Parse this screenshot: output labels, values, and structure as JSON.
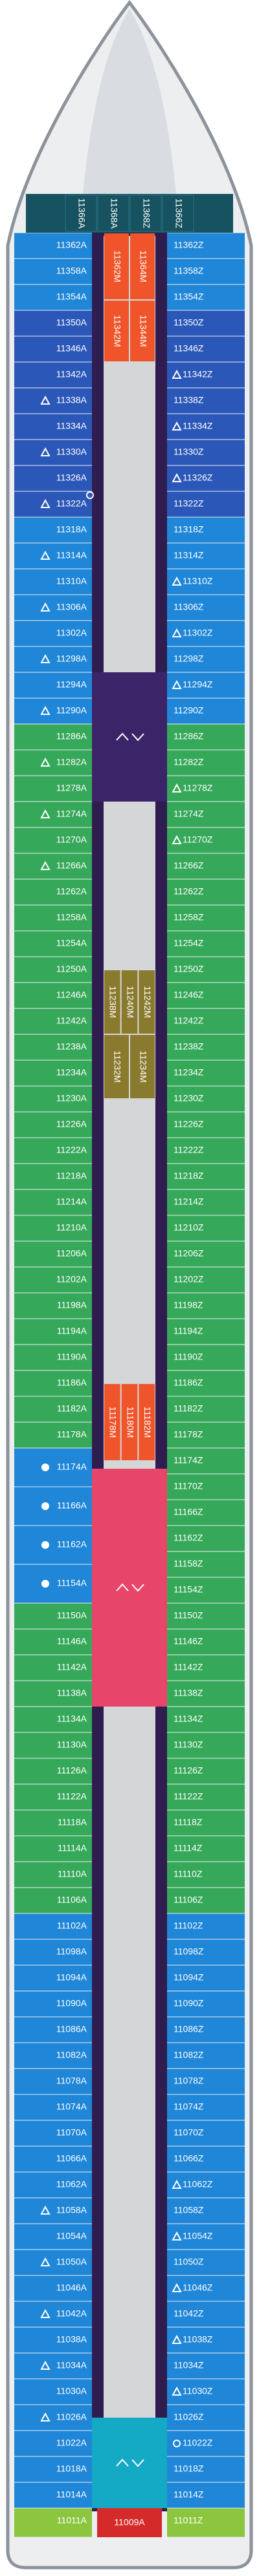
{
  "deck": {
    "top_cabins": [
      "11366A",
      "11368A",
      "11368Z",
      "11366Z"
    ],
    "left_sections": [
      {
        "color": "#1f86d8",
        "cabins": [
          "11362A",
          "11358A",
          "11354A"
        ]
      },
      {
        "color": "#2b57b8",
        "cabins": [
          "11350A",
          "11346A",
          "11342A",
          {
            "label": "11338A",
            "icons": [
              "triangle"
            ]
          },
          "11334A",
          {
            "label": "11330A",
            "icons": [
              "triangle"
            ]
          },
          "11326A",
          {
            "label": "11322A",
            "icons": [
              "triangle",
              "ring"
            ]
          }
        ]
      },
      {
        "color": "#1f86d8",
        "cabins": [
          "11318A",
          {
            "label": "11314A",
            "icons": [
              "triangle"
            ]
          },
          "11310A",
          {
            "label": "11306A",
            "icons": [
              "triangle"
            ]
          },
          "11302A",
          {
            "label": "11298A",
            "icons": [
              "triangle"
            ]
          },
          "11294A",
          {
            "label": "11290A",
            "icons": [
              "triangle"
            ]
          }
        ]
      },
      {
        "color": "#36a85a",
        "cabins": [
          "11286A",
          {
            "label": "11282A",
            "icons": [
              "triangle"
            ]
          },
          "11278A",
          {
            "label": "11274A",
            "icons": [
              "triangle"
            ]
          },
          "11270A",
          {
            "label": "11266A",
            "icons": [
              "triangle"
            ]
          },
          "11262A",
          "11258A",
          "11254A",
          "11250A",
          "11246A",
          "11242A",
          "11238A",
          "11234A",
          "11230A",
          "11226A",
          "11222A",
          "11218A",
          "11214A",
          "11210A",
          "11206A",
          "11202A",
          "11198A",
          "11194A",
          "11190A",
          "11186A",
          "11182A",
          "11178A"
        ]
      },
      {
        "color": "#1f86d8",
        "cabins": [
          {
            "label": "11174A",
            "icons": [
              "dot"
            ]
          },
          {
            "label": "11166A",
            "icons": [
              "dot"
            ]
          },
          {
            "label": "11162A",
            "icons": [
              "dot"
            ]
          },
          {
            "label": "11154A",
            "icons": [
              "dot"
            ]
          }
        ]
      },
      {
        "color": "#36a85a",
        "cabins": [
          "11150A",
          "11146A",
          "11142A",
          "11138A",
          "11134A",
          "11130A",
          "11126A",
          "11122A",
          "11118A",
          "11114A",
          "11110A",
          "11106A"
        ]
      },
      {
        "color": "#1f86d8",
        "cabins": [
          "11102A",
          "11098A",
          "11094A",
          "11090A",
          "11086A",
          "11082A",
          "11078A",
          "11074A",
          "11070A",
          "11066A",
          "11062A",
          {
            "label": "11058A",
            "icons": [
              "triangle"
            ]
          },
          "11054A",
          {
            "label": "11050A",
            "icons": [
              "triangle"
            ]
          },
          "11046A",
          {
            "label": "11042A",
            "icons": [
              "triangle"
            ]
          },
          "11038A",
          {
            "label": "11034A",
            "icons": [
              "triangle"
            ]
          },
          "11030A",
          {
            "label": "11026A",
            "icons": [
              "triangle"
            ]
          },
          "11022A",
          "11018A",
          "11014A"
        ]
      },
      {
        "color": "#8cc63f",
        "cabins": [
          "11011A"
        ]
      }
    ],
    "right_sections": [
      {
        "color": "#1f86d8",
        "cabins": [
          "11362Z",
          "11358Z",
          "11354Z"
        ]
      },
      {
        "color": "#2b57b8",
        "cabins": [
          "11350Z",
          "11346Z",
          {
            "label": "11342Z",
            "icons": [
              "triangle"
            ]
          },
          "11338Z",
          {
            "label": "11334Z",
            "icons": [
              "triangle"
            ]
          },
          "11330Z",
          {
            "label": "11326Z",
            "icons": [
              "triangle"
            ]
          },
          "11322Z"
        ]
      },
      {
        "color": "#1f86d8",
        "cabins": [
          "11318Z",
          "11314Z",
          {
            "label": "11310Z",
            "icons": [
              "triangle"
            ]
          },
          "11306Z",
          {
            "label": "11302Z",
            "icons": [
              "triangle"
            ]
          },
          "11298Z",
          {
            "label": "11294Z",
            "icons": [
              "triangle"
            ]
          },
          "11290Z"
        ]
      },
      {
        "color": "#36a85a",
        "cabins": [
          "11286Z",
          "11282Z",
          {
            "label": "11278Z",
            "icons": [
              "triangle"
            ]
          },
          "11274Z",
          {
            "label": "11270Z",
            "icons": [
              "triangle"
            ]
          },
          "11266Z",
          "11262Z",
          "11258Z",
          "11254Z",
          "11250Z",
          "11246Z",
          "11242Z",
          "11238Z",
          "11234Z",
          "11230Z",
          "11226Z",
          "11222Z",
          "11218Z",
          "11214Z",
          "11210Z",
          "11206Z",
          "11202Z",
          "11198Z",
          "11194Z",
          "11190Z",
          "11186Z",
          "11182Z",
          "11178Z",
          "11174Z",
          "11170Z",
          "11166Z",
          "11162Z",
          "11158Z",
          "11154Z",
          "11150Z",
          "11146Z",
          "11142Z",
          "11138Z",
          "11134Z",
          "11130Z",
          "11126Z",
          "11122Z",
          "11118Z",
          "11114Z",
          "11110Z",
          "11106Z"
        ]
      },
      {
        "color": "#1f86d8",
        "cabins": [
          "11102Z",
          "11098Z",
          "11094Z",
          "11090Z",
          "11086Z",
          "11082Z",
          "11078Z",
          "11074Z",
          "11070Z",
          "11066Z",
          {
            "label": "11062Z",
            "icons": [
              "triangle"
            ]
          },
          "11058Z",
          {
            "label": "11054Z",
            "icons": [
              "triangle"
            ]
          },
          "11050Z",
          {
            "label": "11046Z",
            "icons": [
              "triangle"
            ]
          },
          "11042Z",
          {
            "label": "11038Z",
            "icons": [
              "triangle"
            ]
          },
          "11034Z",
          {
            "label": "11030Z",
            "icons": [
              "triangle"
            ]
          },
          "11026Z",
          {
            "label": "11022Z",
            "icons": [
              "ring"
            ]
          },
          "11018Z",
          "11014Z"
        ]
      },
      {
        "color": "#8cc63f",
        "cabins": [
          "11011Z"
        ]
      }
    ],
    "center_blocks": [
      {
        "color": "#f0542a",
        "cabins": [
          "11362M",
          "11364M"
        ]
      },
      {
        "color": "#f0542a",
        "cabins": [
          "11342M",
          "11344M"
        ]
      },
      {
        "color": "#8a7a2e",
        "cabins": [
          "11238M",
          "11240M",
          "11242M"
        ]
      },
      {
        "color": "#8a7a2e",
        "cabins": [
          "11232M",
          "11234M"
        ]
      },
      {
        "color": "#f0542a",
        "cabins": [
          "11178M",
          "11180M",
          "11182M"
        ]
      }
    ],
    "elevators": [
      "#3c2468",
      "#e8456b",
      "#14a9c4"
    ],
    "bottom_cabin": "11009A"
  }
}
